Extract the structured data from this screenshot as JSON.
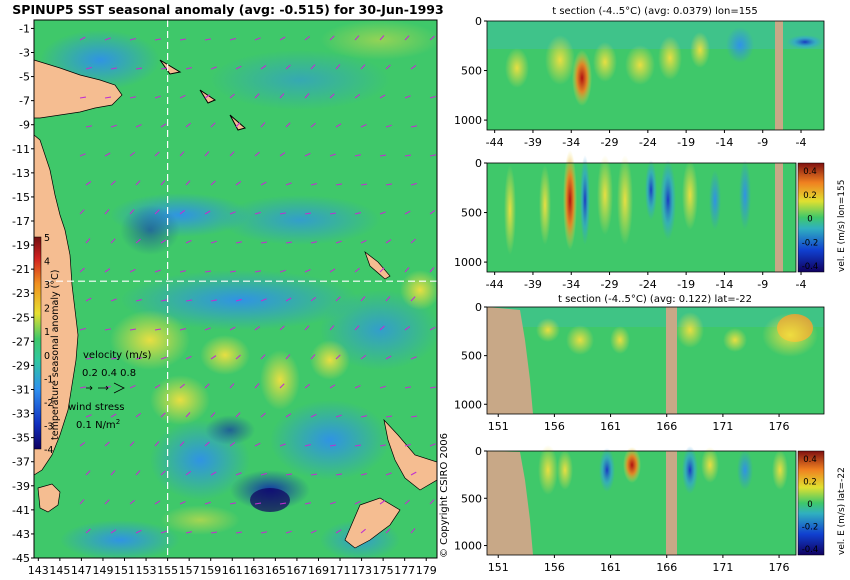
{
  "colors": {
    "land": "#f5bd91",
    "land_section": "#c8a887",
    "ocean_base": "#3fc86a",
    "warm": "#e8e030",
    "cool": "#2f8ef0",
    "deep_cool": "#1233a0",
    "hot": "#c01010",
    "grid": "#ffffff",
    "arrow": "#c030d0"
  },
  "map": {
    "title": "SPINUP5 SST seasonal anomaly (avg: -0.515) for 30-Jun-1993",
    "lat_ticks": [
      "-1",
      "-3",
      "-5",
      "-7",
      "-9",
      "-11",
      "-13",
      "-15",
      "-17",
      "-19",
      "-21",
      "-23",
      "-25",
      "-27",
      "-29",
      "-31",
      "-33",
      "-35",
      "-37",
      "-39",
      "-41",
      "-43",
      "-45"
    ],
    "lon_ticks": [
      "143",
      "145",
      "147",
      "149",
      "151",
      "153",
      "155",
      "157",
      "159",
      "161",
      "163",
      "165",
      "167",
      "169",
      "171",
      "173",
      "175",
      "177",
      "179"
    ],
    "colorbar_ticks": [
      "5",
      "4",
      "3",
      "2",
      "1",
      "0",
      "-1",
      "-2",
      "-3",
      "-4"
    ],
    "colorbar_label": "temperature seasonal anomaly (°C)",
    "velocity_label": "velocity (m/s)",
    "velocity_scale": "0.2 0.4 0.8",
    "wind_label": "wind stress",
    "wind_scale": "0.1 N/m",
    "wind_scale_sup": "2",
    "crosshair": {
      "lon": 155,
      "lat": -22
    },
    "copyright": "© Copyright CSIRO 2006"
  },
  "chart_data": [
    {
      "type": "heatmap",
      "title": "t section (-4..5°C) (avg: 0.0379) lon=155",
      "x_ticks": [
        "-44",
        "-39",
        "-34",
        "-29",
        "-24",
        "-19",
        "-14",
        "-9",
        "-4"
      ],
      "y_ticks": [
        "0",
        "500",
        "1000"
      ],
      "xlim": [
        -45,
        -1
      ],
      "ylim": [
        0,
        1100
      ]
    },
    {
      "type": "heatmap",
      "title": "",
      "x_ticks": [
        "-44",
        "-39",
        "-34",
        "-29",
        "-24",
        "-19",
        "-14",
        "-9",
        "-4"
      ],
      "y_ticks": [
        "0",
        "500",
        "1000"
      ],
      "colorbar_ticks": [
        "0.4",
        "0.2",
        "0",
        "-0.2",
        "-0.4"
      ],
      "colorbar_label": "vel. E (m/s) lon=155",
      "xlim": [
        -45,
        -1
      ],
      "ylim": [
        0,
        1100
      ]
    },
    {
      "type": "heatmap",
      "title": "t section (-4..5°C) (avg: 0.122) lat=-22",
      "x_ticks": [
        "151",
        "156",
        "161",
        "166",
        "171",
        "176"
      ],
      "y_ticks": [
        "0",
        "500",
        "1000"
      ],
      "xlim": [
        150,
        180
      ],
      "ylim": [
        0,
        1100
      ]
    },
    {
      "type": "heatmap",
      "title": "",
      "x_ticks": [
        "151",
        "156",
        "161",
        "166",
        "171",
        "176"
      ],
      "y_ticks": [
        "0",
        "500",
        "1000"
      ],
      "colorbar_ticks": [
        "0.4",
        "0.2",
        "0",
        "-0.2",
        "-0.4"
      ],
      "colorbar_label": "vel. E (m/s) lat=-22",
      "xlim": [
        150,
        180
      ],
      "ylim": [
        0,
        1100
      ]
    }
  ]
}
